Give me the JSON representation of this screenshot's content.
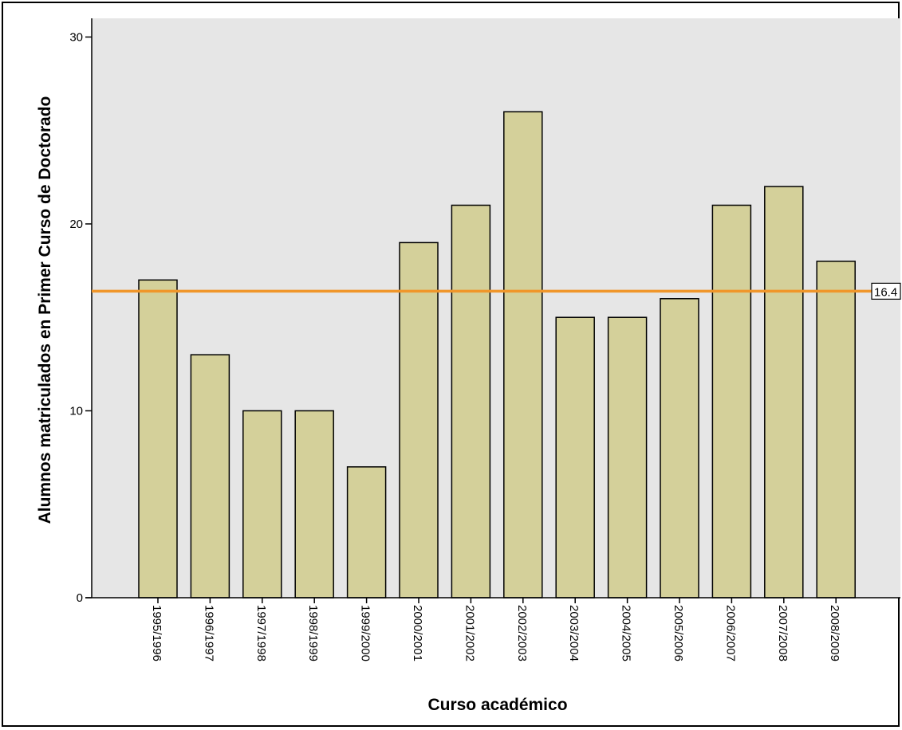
{
  "chart_data": {
    "type": "bar",
    "title": "",
    "xlabel": "Curso académico",
    "ylabel": "Alumnos matriculados en Primer Curso de Doctorado",
    "categories": [
      "1995/1996",
      "1996/1997",
      "1997/1998",
      "1998/1999",
      "1999/2000",
      "2000/2001",
      "2001/2002",
      "2002/2003",
      "2003/2004",
      "2004/2005",
      "2005/2006",
      "2006/2007",
      "2007/2008",
      "2008/2009"
    ],
    "values": [
      17,
      13,
      10,
      10,
      7,
      19,
      21,
      26,
      15,
      15,
      16,
      21,
      22,
      18
    ],
    "ylim": [
      0,
      31
    ],
    "yticks": [
      0,
      10,
      20,
      30
    ],
    "grid": false,
    "reference_line": {
      "value": 16.4,
      "label": "16.4",
      "color": "#f0962a"
    },
    "colors": {
      "bar_fill": "#d4d09a",
      "bar_stroke": "#000000",
      "plot_background": "#e6e6e6"
    }
  }
}
